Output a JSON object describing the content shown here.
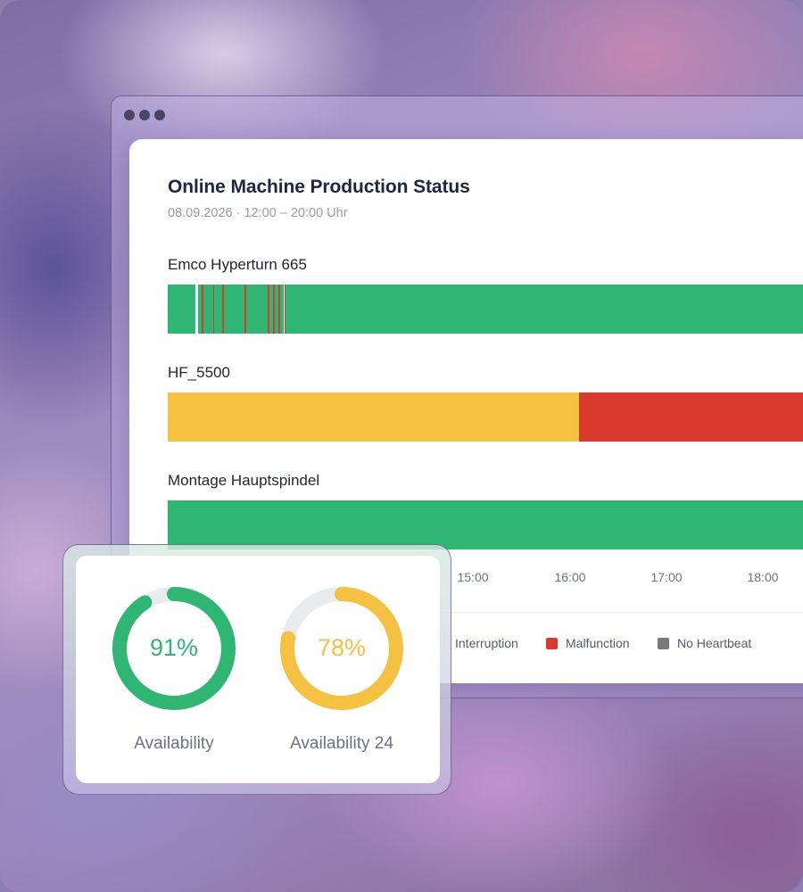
{
  "dashboard": {
    "title": "Online Machine Production Status",
    "subtitle": "08.09.2026 · 12:00 – 20:00 Uhr"
  },
  "colors": {
    "running": "#2fb673",
    "interruption": "#f5c141",
    "malfunction": "#d93a2b",
    "no_heartbeat": "#7a7a7a",
    "divider": "#ffffff"
  },
  "machines": [
    {
      "name": "Emco Hyperturn 665",
      "status_timeline": [
        {
          "state": "running",
          "from": "12:00",
          "to": "12:20"
        },
        {
          "state": "running",
          "from": "12:20",
          "to": "12:25"
        },
        {
          "state": "malfunction",
          "from": "12:25",
          "to": "12:26"
        },
        {
          "state": "running",
          "from": "12:26",
          "to": "12:33"
        },
        {
          "state": "malfunction",
          "from": "12:33",
          "to": "12:34"
        },
        {
          "state": "running",
          "from": "12:34",
          "to": "12:40"
        },
        {
          "state": "malfunction",
          "from": "12:40",
          "to": "12:41"
        },
        {
          "state": "running",
          "from": "12:41",
          "to": "12:56"
        },
        {
          "state": "malfunction",
          "from": "12:56",
          "to": "12:57"
        },
        {
          "state": "running",
          "from": "12:57",
          "to": "13:13"
        },
        {
          "state": "malfunction",
          "from": "13:13",
          "to": "13:14"
        },
        {
          "state": "running",
          "from": "13:14",
          "to": "13:17"
        },
        {
          "state": "malfunction",
          "from": "13:17",
          "to": "13:18"
        },
        {
          "state": "running",
          "from": "13:18",
          "to": "13:21"
        },
        {
          "state": "malfunction",
          "from": "13:21",
          "to": "13:22"
        },
        {
          "state": "running",
          "from": "13:22",
          "to": "13:25"
        },
        {
          "state": "malfunction",
          "from": "13:25",
          "to": "13:26"
        },
        {
          "state": "running",
          "from": "13:26",
          "to": "20:00"
        }
      ]
    },
    {
      "name": "HF_5500",
      "status_timeline": [
        {
          "state": "interruption",
          "from": "12:00",
          "to": "17:00"
        },
        {
          "state": "malfunction",
          "from": "17:00",
          "to": "20:00"
        }
      ]
    },
    {
      "name": "Montage Hauptspindel",
      "status_timeline": [
        {
          "state": "running",
          "from": "12:00",
          "to": "20:00"
        }
      ]
    }
  ],
  "axis": {
    "ticks": [
      "15:00",
      "16:00",
      "17:00",
      "18:00"
    ]
  },
  "legend": [
    {
      "label": "Interruption",
      "color": "#f5c141"
    },
    {
      "label": "Malfunction",
      "color": "#d93a2b"
    },
    {
      "label": "No Heartbeat",
      "color": "#7a7a7a"
    }
  ],
  "gauges": [
    {
      "value": 91,
      "value_text": "91%",
      "label": "Availability",
      "color": "#2fb673"
    },
    {
      "value": 78,
      "value_text": "78%",
      "label": "Availability 24",
      "color": "#f5c141"
    }
  ]
}
